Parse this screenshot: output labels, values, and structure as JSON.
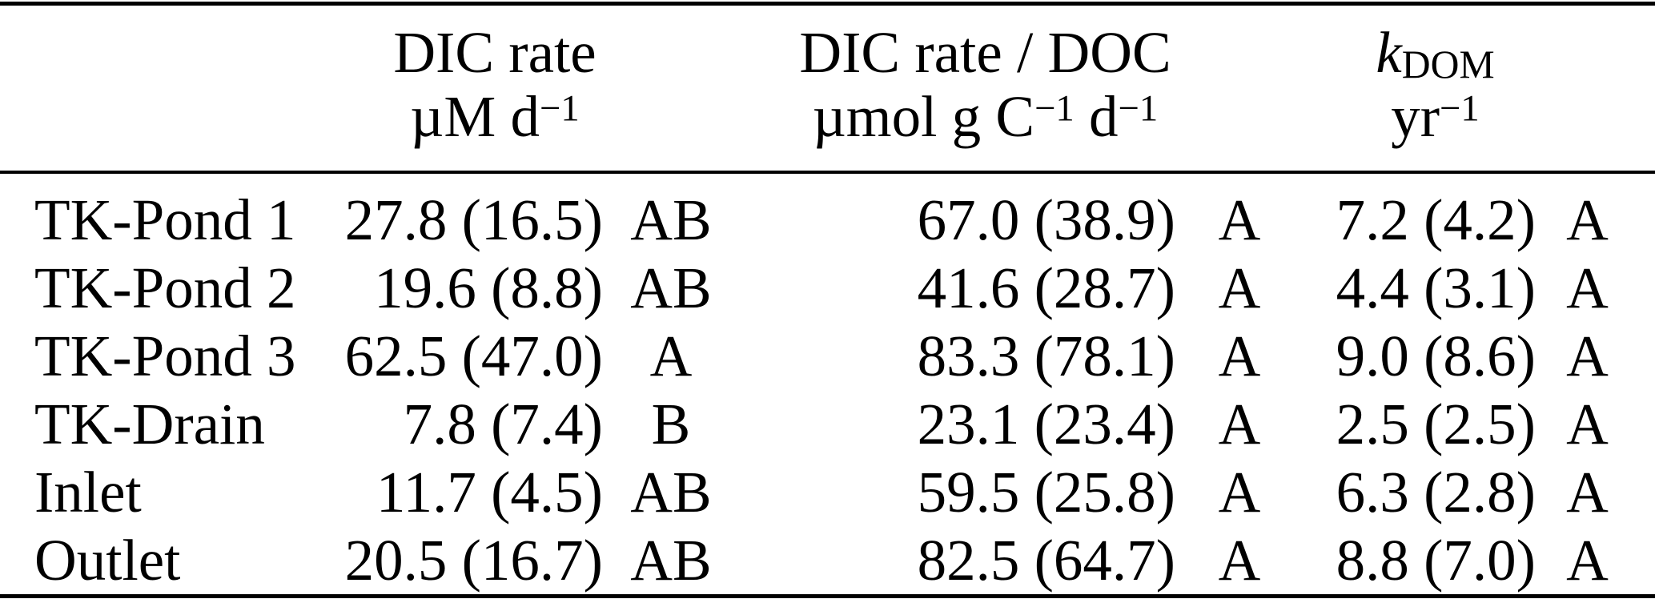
{
  "table": {
    "header": {
      "g1": {
        "title": "DIC rate",
        "unit_main": "µM d",
        "unit_sup": "−1"
      },
      "g2": {
        "title": "DIC rate / DOC",
        "unit_part1": "µmol g C",
        "unit_sup1": "−1",
        "unit_part2": " d",
        "unit_sup2": "−1"
      },
      "g3": {
        "symbol": "k",
        "symbol_sub": "DOM",
        "unit_main": "yr",
        "unit_sup": "−1"
      }
    },
    "rows": [
      {
        "site": "TK-Pond 1",
        "dic_rate": "27.8 (16.5)",
        "dic_rate_group": "AB",
        "dic_doc": "67.0 (38.9)",
        "dic_doc_group": "A",
        "kdom": "7.2 (4.2)",
        "kdom_group": "A"
      },
      {
        "site": "TK-Pond 2",
        "dic_rate": "19.6 (8.8)",
        "dic_rate_group": "AB",
        "dic_doc": "41.6 (28.7)",
        "dic_doc_group": "A",
        "kdom": "4.4 (3.1)",
        "kdom_group": "A"
      },
      {
        "site": "TK-Pond 3",
        "dic_rate": "62.5 (47.0)",
        "dic_rate_group": "A",
        "dic_doc": "83.3 (78.1)",
        "dic_doc_group": "A",
        "kdom": "9.0 (8.6)",
        "kdom_group": "A"
      },
      {
        "site": "TK-Drain",
        "dic_rate": "7.8 (7.4)",
        "dic_rate_group": "B",
        "dic_doc": "23.1 (23.4)",
        "dic_doc_group": "A",
        "kdom": "2.5 (2.5)",
        "kdom_group": "A"
      },
      {
        "site": "Inlet",
        "dic_rate": "11.7 (4.5)",
        "dic_rate_group": "AB",
        "dic_doc": "59.5 (25.8)",
        "dic_doc_group": "A",
        "kdom": "6.3 (2.8)",
        "kdom_group": "A"
      },
      {
        "site": "Outlet",
        "dic_rate": "20.5 (16.7)",
        "dic_rate_group": "AB",
        "dic_doc": "82.5 (64.7)",
        "dic_doc_group": "A",
        "kdom": "8.8 (7.0)",
        "kdom_group": "A"
      }
    ],
    "colors": {
      "text": "#000000",
      "background": "#ffffff",
      "rule": "#000000"
    }
  }
}
